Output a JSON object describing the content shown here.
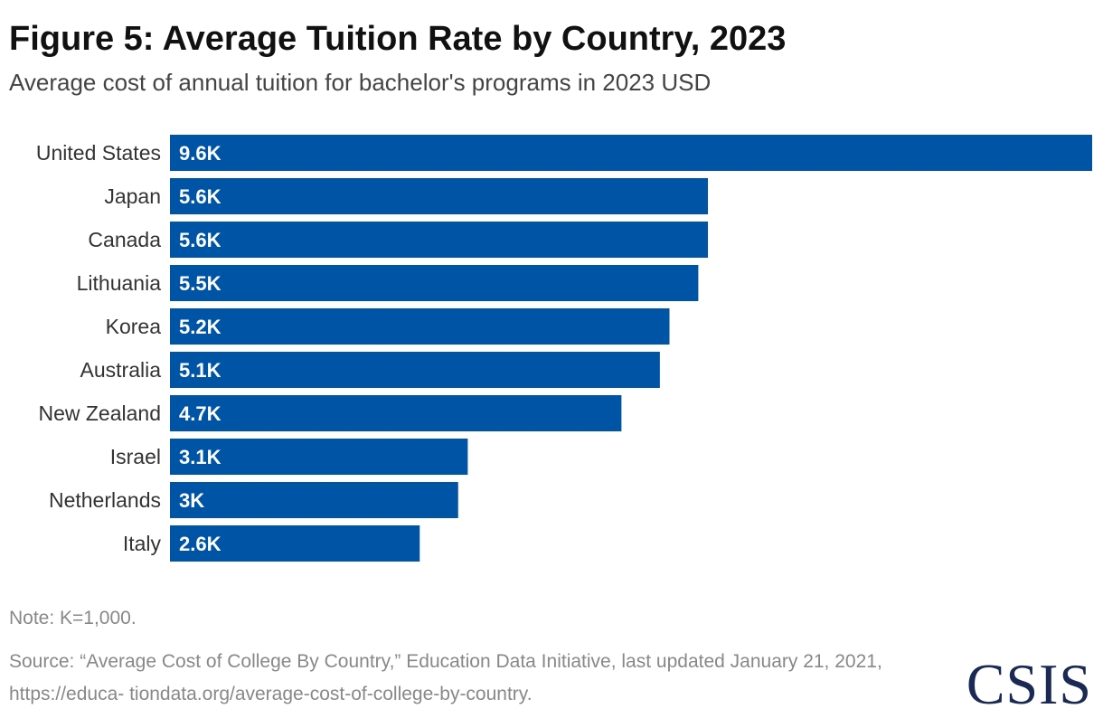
{
  "header": {
    "title": "Figure 5: Average Tuition Rate by Country, 2023",
    "subtitle": "Average cost of annual tuition for bachelor's programs in 2023 USD"
  },
  "chart_data": {
    "type": "bar",
    "orientation": "horizontal",
    "categories": [
      "United States",
      "Japan",
      "Canada",
      "Lithuania",
      "Korea",
      "Australia",
      "New Zealand",
      "Israel",
      "Netherlands",
      "Italy"
    ],
    "values": [
      9600,
      5600,
      5600,
      5500,
      5200,
      5100,
      4700,
      3100,
      3000,
      2600
    ],
    "value_labels": [
      "9.6K",
      "5.6K",
      "5.6K",
      "5.5K",
      "5.2K",
      "5.1K",
      "4.7K",
      "3.1K",
      "3K",
      "2.6K"
    ],
    "title": "Figure 5: Average Tuition Rate by Country, 2023",
    "subtitle": "Average cost of annual tuition for bachelor's programs in 2023 USD",
    "xlim": [
      0,
      9600
    ],
    "grid": false,
    "bar_color": "#0054a6"
  },
  "footer": {
    "note": "Note: K=1,000.",
    "source": "Source: “Average Cost of College By Country,” Education Data Initiative, last updated January 21, 2021, https://educa- tiondata.org/average-cost-of-college-by-country.",
    "logo_text": "CSIS"
  },
  "colors": {
    "bar": "#0054a6",
    "logo": "#1b2a55"
  }
}
